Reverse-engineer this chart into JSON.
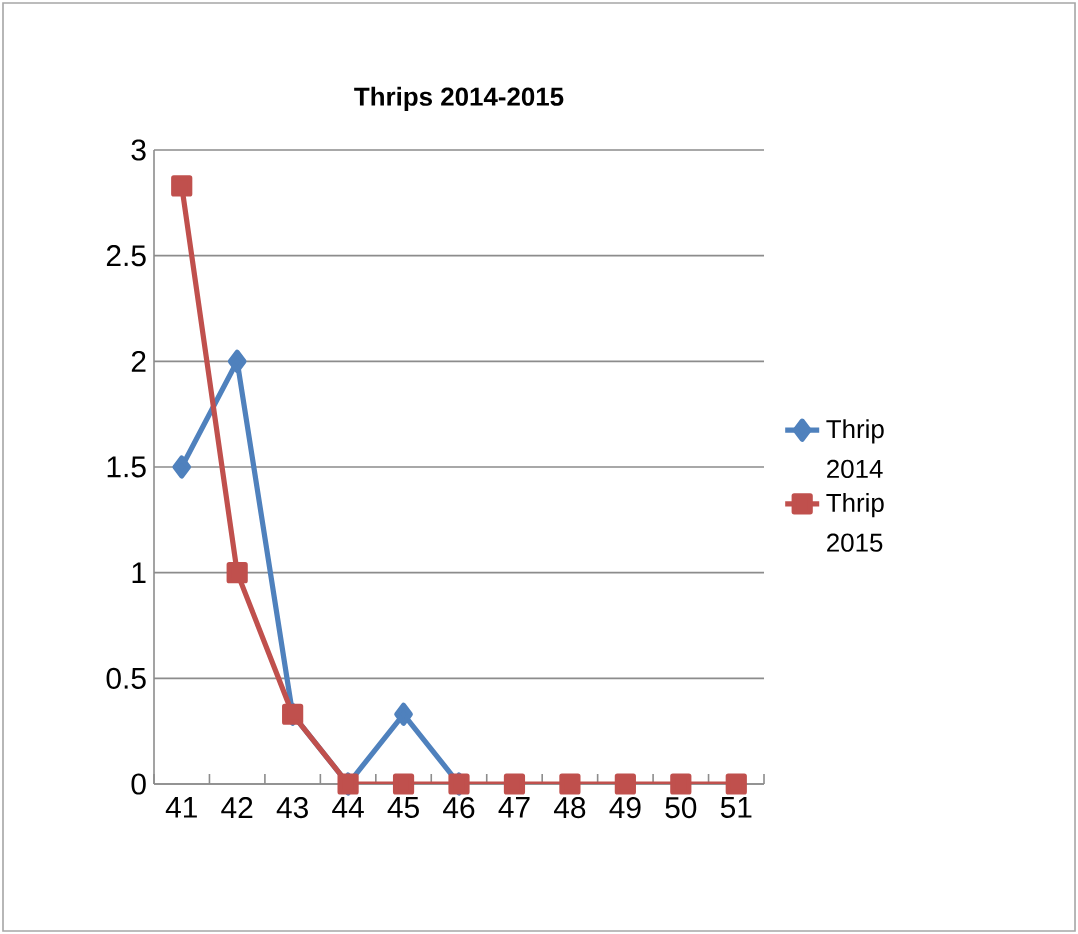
{
  "chart_data": {
    "type": "line",
    "title": "Thrips 2014-2015",
    "categories": [
      "41",
      "42",
      "43",
      "44",
      "45",
      "46",
      "47",
      "48",
      "49",
      "50",
      "51"
    ],
    "series": [
      {
        "name": "Thrip 2014",
        "color": "#4f81bd",
        "marker": "diamond",
        "values": [
          1.5,
          2,
          0.33,
          0,
          0.33,
          0,
          null,
          null,
          null,
          null,
          null
        ]
      },
      {
        "name": "Thrip 2015",
        "color": "#c0504d",
        "marker": "square",
        "values": [
          2.83,
          1,
          0.33,
          0,
          0,
          0,
          0,
          0,
          0,
          0,
          0
        ]
      }
    ],
    "ylim": [
      0,
      3
    ],
    "yticks": [
      0,
      0.5,
      1,
      1.5,
      2,
      2.5,
      3
    ],
    "grid": "y",
    "legend": "right"
  }
}
